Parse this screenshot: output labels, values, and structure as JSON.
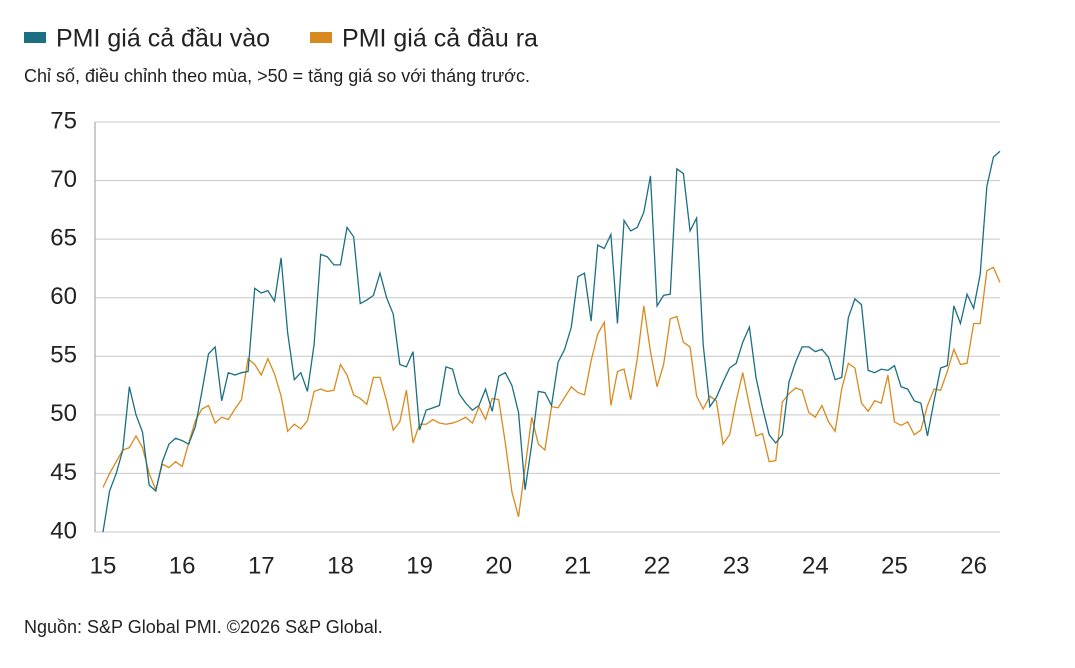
{
  "chart_data": {
    "type": "line",
    "subtitle": "Chỉ số, điều chỉnh theo mùa, >50 = tăng giá so với tháng trước.",
    "source": "Nguồn: S&P Global PMI. ©2026 S&P Global.",
    "xlim": [
      15,
      26.333
    ],
    "xticks": [
      15,
      16,
      17,
      18,
      19,
      20,
      21,
      22,
      23,
      24,
      25,
      26
    ],
    "ylim": [
      40,
      75
    ],
    "yticks": [
      40,
      45,
      50,
      55,
      60,
      65,
      70,
      75
    ],
    "grid": true,
    "reference_line": 50,
    "legend": "top",
    "x": [
      15,
      15.083,
      15.167,
      15.25,
      15.333,
      15.417,
      15.5,
      15.583,
      15.667,
      15.75,
      15.833,
      15.917,
      16,
      16.083,
      16.167,
      16.25,
      16.333,
      16.417,
      16.5,
      16.583,
      16.667,
      16.75,
      16.833,
      16.917,
      17,
      17.083,
      17.167,
      17.25,
      17.333,
      17.417,
      17.5,
      17.583,
      17.667,
      17.75,
      17.833,
      17.917,
      18,
      18.083,
      18.167,
      18.25,
      18.333,
      18.417,
      18.5,
      18.583,
      18.667,
      18.75,
      18.833,
      18.917,
      19,
      19.083,
      19.167,
      19.25,
      19.333,
      19.417,
      19.5,
      19.583,
      19.667,
      19.75,
      19.833,
      19.917,
      20,
      20.083,
      20.167,
      20.25,
      20.333,
      20.417,
      20.5,
      20.583,
      20.667,
      20.75,
      20.833,
      20.917,
      21,
      21.083,
      21.167,
      21.25,
      21.333,
      21.417,
      21.5,
      21.583,
      21.667,
      21.75,
      21.833,
      21.917,
      22,
      22.083,
      22.167,
      22.25,
      22.333,
      22.417,
      22.5,
      22.583,
      22.667,
      22.75,
      22.833,
      22.917,
      23,
      23.083,
      23.167,
      23.25,
      23.333,
      23.417,
      23.5,
      23.583,
      23.667,
      23.75,
      23.833,
      23.917,
      24,
      24.083,
      24.167,
      24.25,
      24.333,
      24.417,
      24.5,
      24.583,
      24.667,
      24.75,
      24.833,
      24.917,
      25,
      25.083,
      25.167,
      25.25,
      25.333,
      25.417,
      25.5,
      25.583,
      25.667,
      25.75,
      25.833,
      25.917,
      26,
      26.083,
      26.167,
      26.25,
      26.333
    ],
    "series": [
      {
        "name": "PMI giá cả đầu vào",
        "color": "#1c6f82",
        "values": [
          40,
          43.5,
          45,
          47,
          52.4,
          50,
          48.5,
          44,
          43.5,
          46,
          47.5,
          48,
          47.8,
          47.5,
          49,
          52,
          55.2,
          55.8,
          51.2,
          53.6,
          53.4,
          53.6,
          53.7,
          60.8,
          60.4,
          60.6,
          59.7,
          63.4,
          57,
          53,
          53.6,
          52,
          56,
          63.7,
          63.5,
          62.8,
          62.8,
          66,
          65.2,
          59.5,
          59.8,
          60.2,
          62.1,
          60,
          58.6,
          54.3,
          54.1,
          55.4,
          48.7,
          50.4,
          50.6,
          50.8,
          54.1,
          53.9,
          51.8,
          51,
          50.4,
          50.8,
          52.2,
          50.3,
          53.3,
          53.6,
          52.5,
          50.2,
          43.6,
          47.5,
          52,
          51.9,
          50.8,
          54.5,
          55.6,
          57.5,
          61.8,
          62.1,
          58,
          64.5,
          64.2,
          65.4,
          57.8,
          66.6,
          65.7,
          66,
          67.3,
          70.4,
          59.3,
          60.2,
          60.3,
          71,
          70.6,
          65.7,
          66.8,
          56,
          50.7,
          51.5,
          52.8,
          54,
          54.4,
          56.2,
          57.5,
          53.2,
          50.6,
          48.3,
          47.6,
          48.3,
          52.8,
          54.5,
          55.8,
          55.8,
          55.4,
          55.6,
          54.9,
          53,
          53.2,
          58.3,
          59.9,
          59.4,
          53.8,
          53.6,
          53.9,
          53.8,
          54.2,
          52.4,
          52.2,
          51.2,
          51,
          48.2,
          51.2,
          54,
          54.2,
          59.3,
          57.8,
          60.3,
          59.1,
          62,
          69.5,
          72,
          72.5
        ]
      },
      {
        "name": "PMI giá cả đầu ra",
        "color": "#d98a1e",
        "values": [
          43.8,
          45,
          46,
          47,
          47.2,
          48.2,
          47.2,
          45,
          43.6,
          45.8,
          45.5,
          46,
          45.6,
          47.6,
          49.5,
          50.5,
          50.8,
          49.3,
          49.8,
          49.6,
          50.5,
          51.3,
          54.8,
          54.3,
          53.4,
          54.8,
          53.5,
          51.6,
          48.6,
          49.2,
          48.8,
          49.5,
          52,
          52.2,
          52,
          52.1,
          54.3,
          53.4,
          51.7,
          51.4,
          50.9,
          53.2,
          53.2,
          51.2,
          48.7,
          49.4,
          52.1,
          47.6,
          49.2,
          49.2,
          49.6,
          49.3,
          49.2,
          49.3,
          49.5,
          49.8,
          49.3,
          50.7,
          49.6,
          51.4,
          51.3,
          47.6,
          43.4,
          41.3,
          45.5,
          49.8,
          47.5,
          47,
          50.7,
          50.6,
          51.5,
          52.4,
          51.9,
          51.7,
          54.6,
          56.9,
          57.9,
          50.8,
          53.7,
          53.9,
          51.3,
          54.8,
          59.3,
          55.4,
          52.4,
          54.3,
          58.2,
          58.4,
          56.2,
          55.8,
          51.6,
          50.5,
          51.6,
          51.2,
          47.5,
          48.3,
          51.2,
          53.6,
          50.8,
          48.2,
          48.4,
          46,
          46.1,
          51.1,
          51.8,
          52.3,
          52.1,
          50.2,
          49.8,
          50.8,
          49.4,
          48.6,
          52.2,
          54.4,
          54,
          51,
          50.3,
          51.2,
          51,
          53.4,
          49.4,
          49.1,
          49.4,
          48.3,
          48.7,
          50.8,
          52.2,
          52.1,
          53.7,
          55.6,
          54.3,
          54.4,
          57.8,
          57.8,
          62.3,
          62.6,
          61.3
        ]
      }
    ]
  }
}
